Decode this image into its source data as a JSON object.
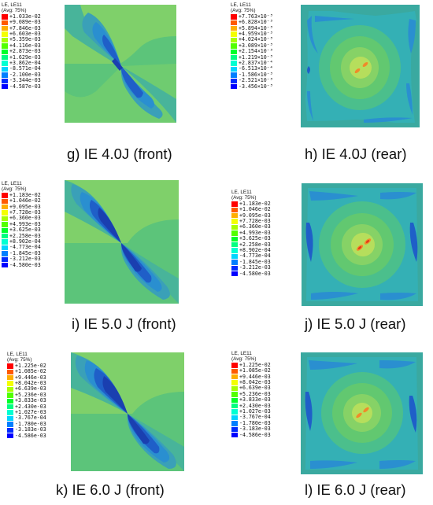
{
  "colors": {
    "scale": [
      "#ff0000",
      "#ff5a00",
      "#ffae00",
      "#f4ff00",
      "#a8ff00",
      "#52ff00",
      "#00ff2a",
      "#00ff80",
      "#00ffd2",
      "#00d5ff",
      "#007fff",
      "#002bff",
      "#0000ff"
    ],
    "plate_base": "#3aa9a0",
    "plate_green": "#5cc47a",
    "plate_lightgreen": "#7fd06a",
    "plate_cyan": "#32b4b8",
    "plate_lightblue": "#2a8fd0",
    "plate_blue": "#1f5fc8",
    "plate_darkblue": "#1a3fb0",
    "hotspot_orange": "#f08a2a",
    "hotspot_red": "#e03a1a"
  },
  "panels": [
    {
      "id": "g",
      "legend": {
        "title": "LE, LE11",
        "avg": "(Avg: 75%)",
        "values": [
          "+1.033e-02",
          "+9.089e-03",
          "+7.846e-03",
          "+6.603e-03",
          "+5.359e-03",
          "+4.116e-03",
          "+2.873e-03",
          "+1.629e-03",
          "+3.862e-04",
          "-8.571e-04",
          "-2.100e-03",
          "-3.344e-03",
          "-4.587e-03"
        ]
      },
      "caption": "g) IE 4.0J (front)"
    },
    {
      "id": "h",
      "legend": {
        "title": "LE, LE11",
        "avg": "(Avg: 75%)",
        "values": [
          "+7.763×10⁻³",
          "+6.828×10⁻³",
          "+5.894×10⁻³",
          "+4.959×10⁻³",
          "+4.024×10⁻³",
          "+3.089×10⁻³",
          "+2.154×10⁻³",
          "+1.219×10⁻³",
          "+2.837×10⁻⁴",
          "-6.513×10⁻⁴",
          "-1.586×10⁻³",
          "-2.521×10⁻³",
          "-3.456×10⁻³"
        ]
      },
      "caption": "h) IE 4.0J (rear)"
    },
    {
      "id": "i",
      "legend": {
        "title": "LE, LE11",
        "avg": "(Avg: 75%)",
        "values": [
          "+1.183e-02",
          "+1.046e-02",
          "+9.095e-03",
          "+7.728e-03",
          "+6.360e-03",
          "+4.993e-03",
          "+3.625e-03",
          "+2.258e-03",
          "+8.902e-04",
          "-4.773e-04",
          "-1.845e-03",
          "-3.212e-03",
          "-4.580e-03"
        ]
      },
      "caption": "i) IE 5.0 J (front)"
    },
    {
      "id": "j",
      "legend": {
        "title": "LE, LE11",
        "avg": "(Avg: 75%)",
        "values": [
          "+1.183e-02",
          "+1.046e-02",
          "+9.095e-03",
          "+7.728e-03",
          "+6.360e-03",
          "+4.993e-03",
          "+3.625e-03",
          "+2.258e-03",
          "+8.902e-04",
          "-4.773e-04",
          "-1.845e-03",
          "-3.212e-03",
          "-4.580e-03"
        ]
      },
      "caption": "j) IE 5.0 J (rear)"
    },
    {
      "id": "k",
      "legend": {
        "title": "LE, LE11",
        "avg": "(Avg: 75%)",
        "values": [
          "+1.225e-02",
          "+1.085e-02",
          "+9.446e-03",
          "+8.042e-03",
          "+6.639e-03",
          "+5.236e-03",
          "+3.833e-03",
          "+2.430e-03",
          "+1.027e-03",
          "-3.767e-04",
          "-1.780e-03",
          "-3.183e-03",
          "-4.586e-03"
        ]
      },
      "caption": "k) IE 6.0 J (front)"
    },
    {
      "id": "l",
      "legend": {
        "title": "LE, LE11",
        "avg": "(Avg: 75%)",
        "values": [
          "+1.225e-02",
          "+1.085e-02",
          "+9.446e-03",
          "+8.042e-03",
          "+6.639e-03",
          "+5.236e-03",
          "+3.833e-03",
          "+2.430e-03",
          "+1.027e-03",
          "-3.767e-04",
          "-1.780e-03",
          "-3.183e-03",
          "-4.586e-03"
        ]
      },
      "caption": "l) IE 6.0 J (rear)"
    }
  ]
}
